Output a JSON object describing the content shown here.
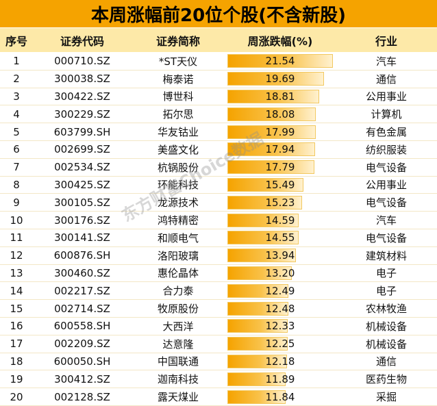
{
  "title": "本周涨幅前20位个股(不含新股)",
  "columns": [
    "序号",
    "证券代码",
    "证券简称",
    "周涨跌幅(%)",
    "行业"
  ],
  "watermark": "东方财富Choice数据",
  "colors": {
    "title_bg": "#f5a300",
    "header_bg": "#fde9a8",
    "bar": "#f5a300"
  },
  "bar_max": 21.54,
  "rows": [
    {
      "idx": "1",
      "code": "000710.SZ",
      "name": "*ST天仪",
      "change": "21.54",
      "industry": "汽车"
    },
    {
      "idx": "2",
      "code": "300038.SZ",
      "name": "梅泰诺",
      "change": "19.69",
      "industry": "通信"
    },
    {
      "idx": "3",
      "code": "300422.SZ",
      "name": "博世科",
      "change": "18.81",
      "industry": "公用事业"
    },
    {
      "idx": "4",
      "code": "300229.SZ",
      "name": "拓尔思",
      "change": "18.08",
      "industry": "计算机"
    },
    {
      "idx": "5",
      "code": "603799.SH",
      "name": "华友钴业",
      "change": "17.99",
      "industry": "有色金属"
    },
    {
      "idx": "6",
      "code": "002699.SZ",
      "name": "美盛文化",
      "change": "17.94",
      "industry": "纺织服装"
    },
    {
      "idx": "7",
      "code": "002534.SZ",
      "name": "杭锅股份",
      "change": "17.79",
      "industry": "电气设备"
    },
    {
      "idx": "8",
      "code": "300425.SZ",
      "name": "环能科技",
      "change": "15.49",
      "industry": "公用事业"
    },
    {
      "idx": "9",
      "code": "300105.SZ",
      "name": "龙源技术",
      "change": "15.23",
      "industry": "电气设备"
    },
    {
      "idx": "10",
      "code": "300176.SZ",
      "name": "鸿特精密",
      "change": "14.59",
      "industry": "汽车"
    },
    {
      "idx": "11",
      "code": "300141.SZ",
      "name": "和顺电气",
      "change": "14.55",
      "industry": "电气设备"
    },
    {
      "idx": "12",
      "code": "600876.SH",
      "name": "洛阳玻璃",
      "change": "13.94",
      "industry": "建筑材料"
    },
    {
      "idx": "13",
      "code": "300460.SZ",
      "name": "惠伦晶体",
      "change": "13.20",
      "industry": "电子"
    },
    {
      "idx": "14",
      "code": "002217.SZ",
      "name": "合力泰",
      "change": "12.49",
      "industry": "电子"
    },
    {
      "idx": "15",
      "code": "002714.SZ",
      "name": "牧原股份",
      "change": "12.48",
      "industry": "农林牧渔"
    },
    {
      "idx": "16",
      "code": "600558.SH",
      "name": "大西洋",
      "change": "12.33",
      "industry": "机械设备"
    },
    {
      "idx": "17",
      "code": "002209.SZ",
      "name": "达意隆",
      "change": "12.25",
      "industry": "机械设备"
    },
    {
      "idx": "18",
      "code": "600050.SH",
      "name": "中国联通",
      "change": "12.18",
      "industry": "通信"
    },
    {
      "idx": "19",
      "code": "300412.SZ",
      "name": "迦南科技",
      "change": "11.89",
      "industry": "医药生物"
    },
    {
      "idx": "20",
      "code": "002128.SZ",
      "name": "露天煤业",
      "change": "11.84",
      "industry": "采掘"
    }
  ]
}
